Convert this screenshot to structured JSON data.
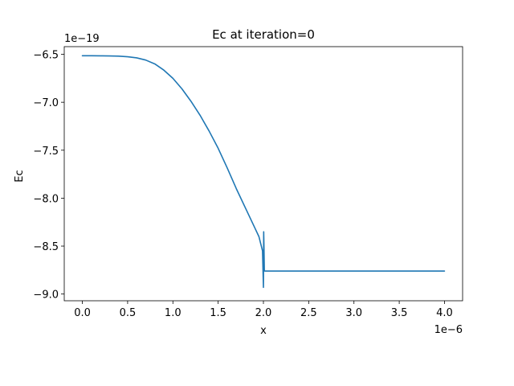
{
  "chart_data": {
    "type": "line",
    "title": "Ec at iteration=0",
    "xlabel": "x",
    "ylabel": "Ec",
    "x_offset_text": "1e−6",
    "y_offset_text": "1e−19",
    "x_scale_exponent": -6,
    "y_scale_exponent": -19,
    "xlim": [
      -0.2,
      4.2
    ],
    "ylim": [
      -9.07,
      -6.42
    ],
    "x_ticks": [
      0.0,
      0.5,
      1.0,
      1.5,
      2.0,
      2.5,
      3.0,
      3.5,
      4.0
    ],
    "x_tick_labels": [
      "0.0",
      "0.5",
      "1.0",
      "1.5",
      "2.0",
      "2.5",
      "3.0",
      "3.5",
      "4.0"
    ],
    "y_ticks": [
      -6.5,
      -7.0,
      -7.5,
      -8.0,
      -8.5,
      -9.0
    ],
    "y_tick_labels": [
      "−6.5",
      "−7.0",
      "−7.5",
      "−8.0",
      "−8.5",
      "−9.0"
    ],
    "grid": false,
    "series": [
      {
        "color": "#1f77b4",
        "x": [
          0.0,
          0.1,
          0.2,
          0.3,
          0.4,
          0.5,
          0.6,
          0.7,
          0.8,
          0.9,
          1.0,
          1.1,
          1.2,
          1.3,
          1.4,
          1.5,
          1.6,
          1.7,
          1.8,
          1.9,
          1.95,
          1.99,
          2.0,
          2.003,
          2.006,
          2.01,
          2.013,
          2.015,
          2.02,
          2.05,
          2.5,
          3.0,
          3.5,
          4.0
        ],
        "y": [
          -6.515,
          -6.515,
          -6.516,
          -6.517,
          -6.519,
          -6.525,
          -6.537,
          -6.56,
          -6.6,
          -6.665,
          -6.75,
          -6.86,
          -6.99,
          -7.135,
          -7.3,
          -7.48,
          -7.685,
          -7.9,
          -8.1,
          -8.3,
          -8.4,
          -8.55,
          -8.93,
          -8.35,
          -8.5,
          -8.75,
          -8.76,
          -8.76,
          -8.76,
          -8.76,
          -8.76,
          -8.76,
          -8.76,
          -8.76
        ]
      }
    ]
  }
}
